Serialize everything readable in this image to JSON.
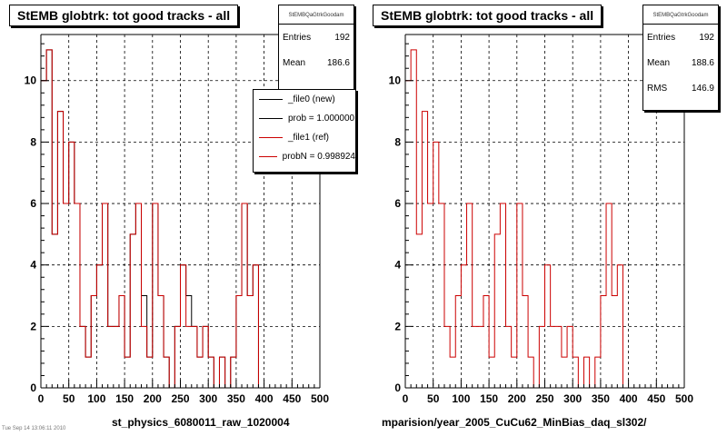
{
  "footnote": "Tue Sep 14 13:06:11 2010",
  "chart_data": [
    {
      "type": "histogram",
      "title": "StEMB globtrk: tot good tracks - all",
      "xlabel": "st_physics_6080011_raw_1020004",
      "xlim": [
        0,
        500
      ],
      "ylim": [
        0,
        11.5
      ],
      "xticks": [
        "0",
        "50",
        "100",
        "150",
        "200",
        "250",
        "300",
        "350",
        "400",
        "450",
        "500"
      ],
      "yticks": [
        "0",
        "2",
        "4",
        "6",
        "8",
        "10"
      ],
      "grid": true,
      "bin_width": 10,
      "stats": {
        "name": "StEMBQaGtrkGoodam",
        "rows": [
          {
            "label": "Entries",
            "value": "192"
          },
          {
            "label": "Mean",
            "value": "186.6"
          }
        ]
      },
      "legend": {
        "position": "top-right",
        "entries": [
          {
            "label": "_file0 (new)",
            "color": "#000000"
          },
          {
            "label": "prob = 1.000000",
            "color": "#000000"
          },
          {
            "label": "_file1 (ref)",
            "color": "#cc0000"
          },
          {
            "label": "probN = 0.998924",
            "color": "#cc0000"
          }
        ]
      },
      "series": [
        {
          "name": "_file0 (new)",
          "color": "#000000",
          "values": [
            10,
            11,
            5,
            9,
            6,
            8,
            6,
            2,
            1,
            3,
            4,
            6,
            2,
            2,
            3,
            1,
            5,
            6,
            3,
            1,
            6,
            3,
            1,
            0,
            2,
            4,
            3,
            2,
            1,
            2,
            1,
            0,
            1,
            0,
            1,
            3,
            6,
            3,
            4,
            0
          ]
        },
        {
          "name": "_file1 (ref)",
          "color": "#cc0000",
          "values": [
            10,
            11,
            5,
            9,
            6,
            8,
            6,
            2,
            1,
            3,
            4,
            6,
            2,
            2,
            3,
            1,
            5,
            6,
            2,
            1,
            6,
            3,
            1,
            0,
            2,
            4,
            2,
            2,
            1,
            2,
            1,
            0,
            1,
            0,
            1,
            3,
            6,
            3,
            4,
            0
          ]
        }
      ]
    },
    {
      "type": "histogram",
      "title": "StEMB globtrk: tot good tracks - all",
      "xlabel": "mparision/year_2005_CuCu62_MinBias_daq_sl302/",
      "xlim": [
        0,
        500
      ],
      "ylim": [
        0,
        11.5
      ],
      "xticks": [
        "0",
        "50",
        "100",
        "150",
        "200",
        "250",
        "300",
        "350",
        "400",
        "450",
        "500"
      ],
      "yticks": [
        "0",
        "2",
        "4",
        "6",
        "8",
        "10"
      ],
      "grid": true,
      "bin_width": 10,
      "stats": {
        "name": "StEMBQaGtrkGoodam",
        "rows": [
          {
            "label": "Entries",
            "value": "192"
          },
          {
            "label": "Mean",
            "value": "188.6"
          },
          {
            "label": "RMS",
            "value": "146.9"
          }
        ]
      },
      "series": [
        {
          "name": "",
          "color": "#cc0000",
          "values": [
            10,
            11,
            5,
            9,
            6,
            8,
            6,
            2,
            1,
            3,
            4,
            6,
            2,
            2,
            3,
            1,
            5,
            6,
            2,
            1,
            6,
            3,
            1,
            0,
            2,
            4,
            2,
            2,
            1,
            2,
            1,
            0,
            1,
            0,
            1,
            3,
            6,
            3,
            4,
            0
          ]
        }
      ]
    }
  ]
}
